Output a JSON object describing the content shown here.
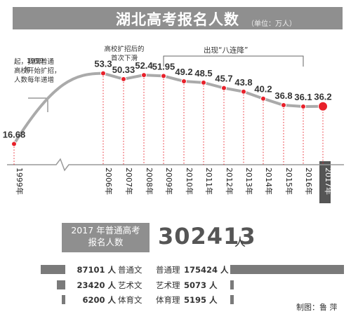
{
  "title": "湖北高考报名人数",
  "unit": "（单位：万人）",
  "notes": {
    "year_1999": "1999",
    "year_suffix": "年",
    "left": "起，我国普通\n高校开始扩招，\n人数每年递增",
    "peak": "高校扩招后的\n首次下滑",
    "decline": "出现“八连降”"
  },
  "chart_data": {
    "type": "line",
    "title": "湖北高考报名人数",
    "ylabel": "",
    "xlabel": "",
    "x": [
      "1999年",
      "2006年",
      "2007年",
      "2008年",
      "2009年",
      "2010年",
      "2011年",
      "2012年",
      "2013年",
      "2014年",
      "2015年",
      "2016年",
      "2017年"
    ],
    "values": [
      16.68,
      53.3,
      50.33,
      52.4,
      51.95,
      49.2,
      48.5,
      45.7,
      43.8,
      40.2,
      36.8,
      36.1,
      36.2
    ],
    "value_labels": [
      "16.68",
      "53.3",
      "50.33",
      "52.4",
      "51.95",
      "49.2",
      "48.5",
      "45.7",
      "43.8",
      "40.2",
      "36.8",
      "36.1",
      "36.2"
    ],
    "ylim": [
      0,
      60
    ],
    "grid": false,
    "highlight_last": true,
    "line_color": "#aaaaaa",
    "marker_color": "#e8202a"
  },
  "summary": {
    "label": "2017 年普通高考\n报名人数",
    "total": "302413",
    "total_unit": "人"
  },
  "breakdown": {
    "left": [
      {
        "count": "87101 人",
        "category": "普通文",
        "value": 87101
      },
      {
        "count": "23420 人",
        "category": "艺术文",
        "value": 23420
      },
      {
        "count": "6200 人",
        "category": "体育文",
        "value": 6200
      }
    ],
    "right": [
      {
        "count": "175424 人",
        "category": "普通理",
        "value": 175424
      },
      {
        "count": "5073 人",
        "category": "艺术理",
        "value": 5073
      },
      {
        "count": "5195 人",
        "category": "体育理",
        "value": 5195
      }
    ],
    "bar_color": "#7a7a7a"
  },
  "credit": "制图：鲁 萍"
}
